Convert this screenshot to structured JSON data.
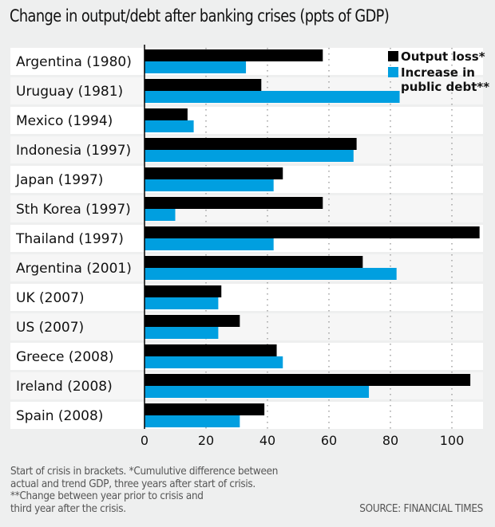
{
  "chart_data": {
    "type": "bar",
    "orientation": "horizontal",
    "title": "Change in output/debt after banking crises (ppts of GDP)",
    "xlabel": "",
    "ylabel": "",
    "xlim": [
      0,
      110
    ],
    "xticks": [
      0,
      20,
      40,
      60,
      80,
      100
    ],
    "grid": true,
    "legend_position": "top-right",
    "categories": [
      "Argentina (1980)",
      "Uruguay (1981)",
      "Mexico (1994)",
      "Indonesia (1997)",
      "Japan (1997)",
      "Sth Korea (1997)",
      "Thailand (1997)",
      "Argentina (2001)",
      "UK (2007)",
      "US (2007)",
      "Greece (2008)",
      "Ireland (2008)",
      "Spain (2008)"
    ],
    "series": [
      {
        "name": "Output loss*",
        "color": "#000000",
        "values": [
          58,
          38,
          14,
          69,
          45,
          58,
          109,
          71,
          25,
          31,
          43,
          106,
          39
        ]
      },
      {
        "name": "Increase in public debt**",
        "legend_lines": [
          "Increase in",
          "public debt**"
        ],
        "color": "#009fe0",
        "values": [
          33,
          83,
          16,
          68,
          42,
          10,
          42,
          82,
          24,
          24,
          45,
          73,
          31
        ]
      }
    ]
  },
  "footnote": "Start of crisis in brackets. *Cumulutive difference between\nactual and trend GDP, three years after start of crisis.\n**Change between year prior to crisis and\nthird year after the crisis.",
  "source": "SOURCE: FINANCIAL TIMES",
  "colors": {
    "background": "#eeefef",
    "row_even": "#ffffff",
    "row_odd": "#f6f6f6",
    "grid": "#9a9a9a"
  }
}
